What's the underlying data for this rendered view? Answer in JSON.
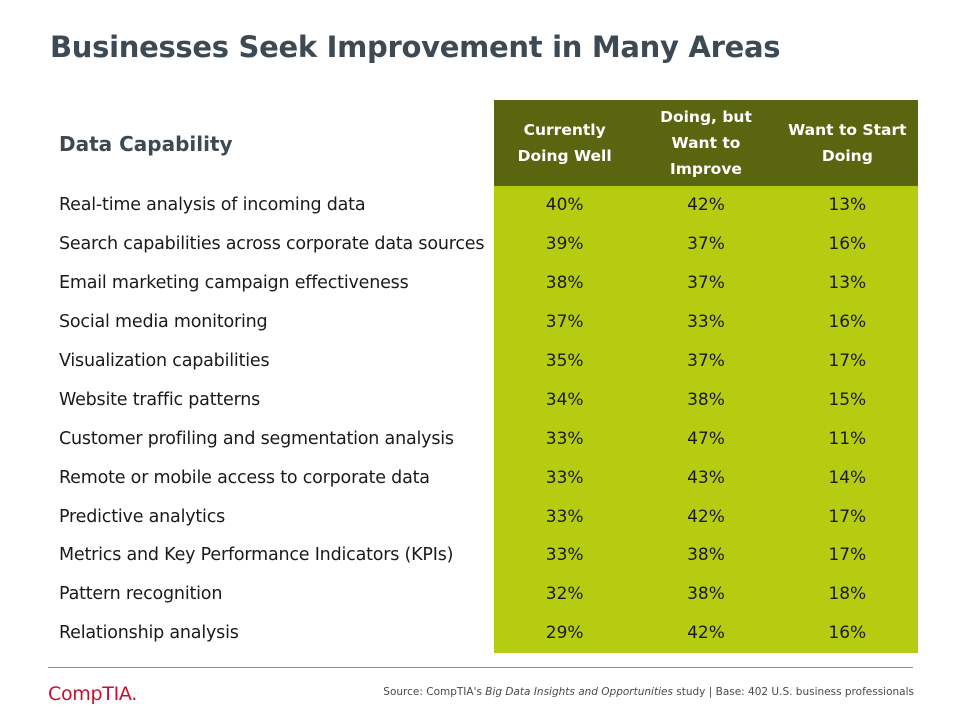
{
  "slide": {
    "title": "Businesses Seek Improvement in Many Areas"
  },
  "chart_data": {
    "type": "table",
    "header_label": "Data Capability",
    "columns": [
      "Currently Doing Well",
      "Doing, but Want to Improve",
      "Want to Start Doing"
    ],
    "rows": [
      {
        "label": "Real-time analysis of incoming data",
        "values": [
          "40%",
          "42%",
          "13%"
        ]
      },
      {
        "label": "Search capabilities across corporate data sources",
        "values": [
          "39%",
          "37%",
          "16%"
        ]
      },
      {
        "label": "Email marketing campaign effectiveness",
        "values": [
          "38%",
          "37%",
          "13%"
        ]
      },
      {
        "label": "Social media monitoring",
        "values": [
          "37%",
          "33%",
          "16%"
        ]
      },
      {
        "label": "Visualization capabilities",
        "values": [
          "35%",
          "37%",
          "17%"
        ]
      },
      {
        "label": "Website traffic patterns",
        "values": [
          "34%",
          "38%",
          "15%"
        ]
      },
      {
        "label": "Customer profiling and segmentation analysis",
        "values": [
          "33%",
          "47%",
          "11%"
        ]
      },
      {
        "label": "Remote or mobile access to corporate data",
        "values": [
          "33%",
          "43%",
          "14%"
        ]
      },
      {
        "label": "Predictive analytics",
        "values": [
          "33%",
          "42%",
          "17%"
        ]
      },
      {
        "label": "Metrics and Key Performance Indicators (KPIs)",
        "values": [
          "33%",
          "38%",
          "17%"
        ]
      },
      {
        "label": "Pattern recognition",
        "values": [
          "32%",
          "38%",
          "18%"
        ]
      },
      {
        "label": "Relationship analysis",
        "values": [
          "29%",
          "42%",
          "16%"
        ]
      }
    ],
    "colors": {
      "header_bg": "#5a6510",
      "cell_bg": "#b5cc10",
      "title": "#3d4a54"
    }
  },
  "footer": {
    "logo_text": "CompTIA",
    "logo_dot": ".",
    "source_prefix": "Source: CompTIA's ",
    "source_italic": "Big Data Insights and Opportunities",
    "source_suffix": " study | Base: 402 U.S. business professionals"
  }
}
